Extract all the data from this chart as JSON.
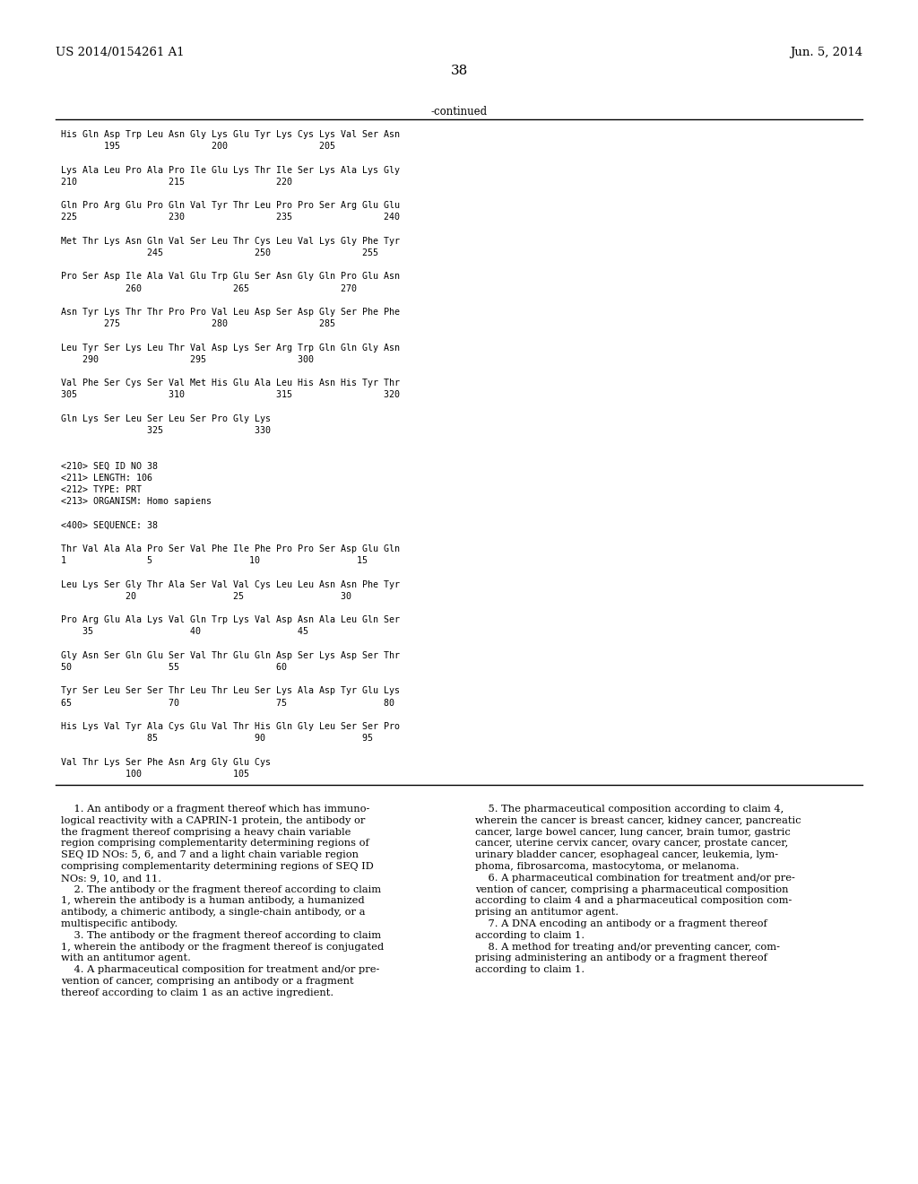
{
  "header_left": "US 2014/0154261 A1",
  "header_right": "Jun. 5, 2014",
  "page_number": "38",
  "continued_label": "-continued",
  "background_color": "#ffffff",
  "text_color": "#000000",
  "sequence_lines": [
    "His Gln Asp Trp Leu Asn Gly Lys Glu Tyr Lys Cys Lys Val Ser Asn",
    "        195                 200                 205",
    "",
    "Lys Ala Leu Pro Ala Pro Ile Glu Lys Thr Ile Ser Lys Ala Lys Gly",
    "210                 215                 220",
    "",
    "Gln Pro Arg Glu Pro Gln Val Tyr Thr Leu Pro Pro Ser Arg Glu Glu",
    "225                 230                 235                 240",
    "",
    "Met Thr Lys Asn Gln Val Ser Leu Thr Cys Leu Val Lys Gly Phe Tyr",
    "                245                 250                 255",
    "",
    "Pro Ser Asp Ile Ala Val Glu Trp Glu Ser Asn Gly Gln Pro Glu Asn",
    "            260                 265                 270",
    "",
    "Asn Tyr Lys Thr Thr Pro Pro Val Leu Asp Ser Asp Gly Ser Phe Phe",
    "        275                 280                 285",
    "",
    "Leu Tyr Ser Lys Leu Thr Val Asp Lys Ser Arg Trp Gln Gln Gly Asn",
    "    290                 295                 300",
    "",
    "Val Phe Ser Cys Ser Val Met His Glu Ala Leu His Asn His Tyr Thr",
    "305                 310                 315                 320",
    "",
    "Gln Lys Ser Leu Ser Leu Ser Pro Gly Lys",
    "                325                 330",
    "",
    "",
    "<210> SEQ ID NO 38",
    "<211> LENGTH: 106",
    "<212> TYPE: PRT",
    "<213> ORGANISM: Homo sapiens",
    "",
    "<400> SEQUENCE: 38",
    "",
    "Thr Val Ala Ala Pro Ser Val Phe Ile Phe Pro Pro Ser Asp Glu Gln",
    "1               5                  10                  15",
    "",
    "Leu Lys Ser Gly Thr Ala Ser Val Val Cys Leu Leu Asn Asn Phe Tyr",
    "            20                  25                  30",
    "",
    "Pro Arg Glu Ala Lys Val Gln Trp Lys Val Asp Asn Ala Leu Gln Ser",
    "    35                  40                  45",
    "",
    "Gly Asn Ser Gln Glu Ser Val Thr Glu Gln Asp Ser Lys Asp Ser Thr",
    "50                  55                  60",
    "",
    "Tyr Ser Leu Ser Ser Thr Leu Thr Leu Ser Lys Ala Asp Tyr Glu Lys",
    "65                  70                  75                  80",
    "",
    "His Lys Val Tyr Ala Cys Glu Val Thr His Gln Gly Leu Ser Ser Pro",
    "                85                  90                  95",
    "",
    "Val Thr Lys Ser Phe Asn Arg Gly Glu Cys",
    "            100                 105"
  ],
  "claims_left": [
    [
      "    ",
      "1",
      ". An antibody or a fragment thereof which has immuno-"
    ],
    [
      "logical reactivity with a CAPRIN-1 protein, the antibody or"
    ],
    [
      "the fragment thereof comprising a heavy chain variable"
    ],
    [
      "region comprising complementarity determining regions of"
    ],
    [
      "SEQ ID NOs: 5, 6, and 7 and a light chain variable region"
    ],
    [
      "comprising complementarity determining regions of SEQ ID"
    ],
    [
      "NOs: 9, 10, and 11."
    ],
    [
      "    ",
      "2",
      ". The antibody or the fragment thereof according to claim"
    ],
    [
      "",
      "1",
      ", wherein the antibody is a human antibody, a humanized"
    ],
    [
      "antibody, a chimeric antibody, a single-chain antibody, or a"
    ],
    [
      "multispecific antibody."
    ],
    [
      "    ",
      "3",
      ". The antibody or the fragment thereof according to claim"
    ],
    [
      "",
      "1",
      ", wherein the antibody or the fragment thereof is conjugated"
    ],
    [
      "with an antitumor agent."
    ],
    [
      "    ",
      "4",
      ". A pharmaceutical composition for treatment and/or pre-"
    ],
    [
      "vention of cancer, comprising an antibody or a fragment"
    ],
    [
      "thereof according to claim ",
      "1",
      " as an active ingredient."
    ]
  ],
  "claims_right": [
    [
      "    ",
      "5",
      ". The pharmaceutical composition according to claim ",
      "4",
      ","
    ],
    [
      "wherein the cancer is breast cancer, kidney cancer, pancreatic"
    ],
    [
      "cancer, large bowel cancer, lung cancer, brain tumor, gastric"
    ],
    [
      "cancer, uterine cervix cancer, ovary cancer, prostate cancer,"
    ],
    [
      "urinary bladder cancer, esophageal cancer, leukemia, lym-"
    ],
    [
      "phoma, fibrosarcoma, mastocytoma, or melanoma."
    ],
    [
      "    ",
      "6",
      ". A pharmaceutical combination for treatment and/or pre-"
    ],
    [
      "vention of cancer, comprising a pharmaceutical composition"
    ],
    [
      "according to claim ",
      "4",
      " and a pharmaceutical composition com-"
    ],
    [
      "prising an antitumor agent."
    ],
    [
      "    ",
      "7",
      ". A DNA encoding an antibody or a fragment thereof"
    ],
    [
      "according to claim ",
      "1",
      "."
    ],
    [
      "    ",
      "8",
      ". A method for treating and/or preventing cancer, com-"
    ],
    [
      "prising administering an antibody or a fragment thereof"
    ],
    [
      "according to claim ",
      "1",
      "."
    ]
  ]
}
